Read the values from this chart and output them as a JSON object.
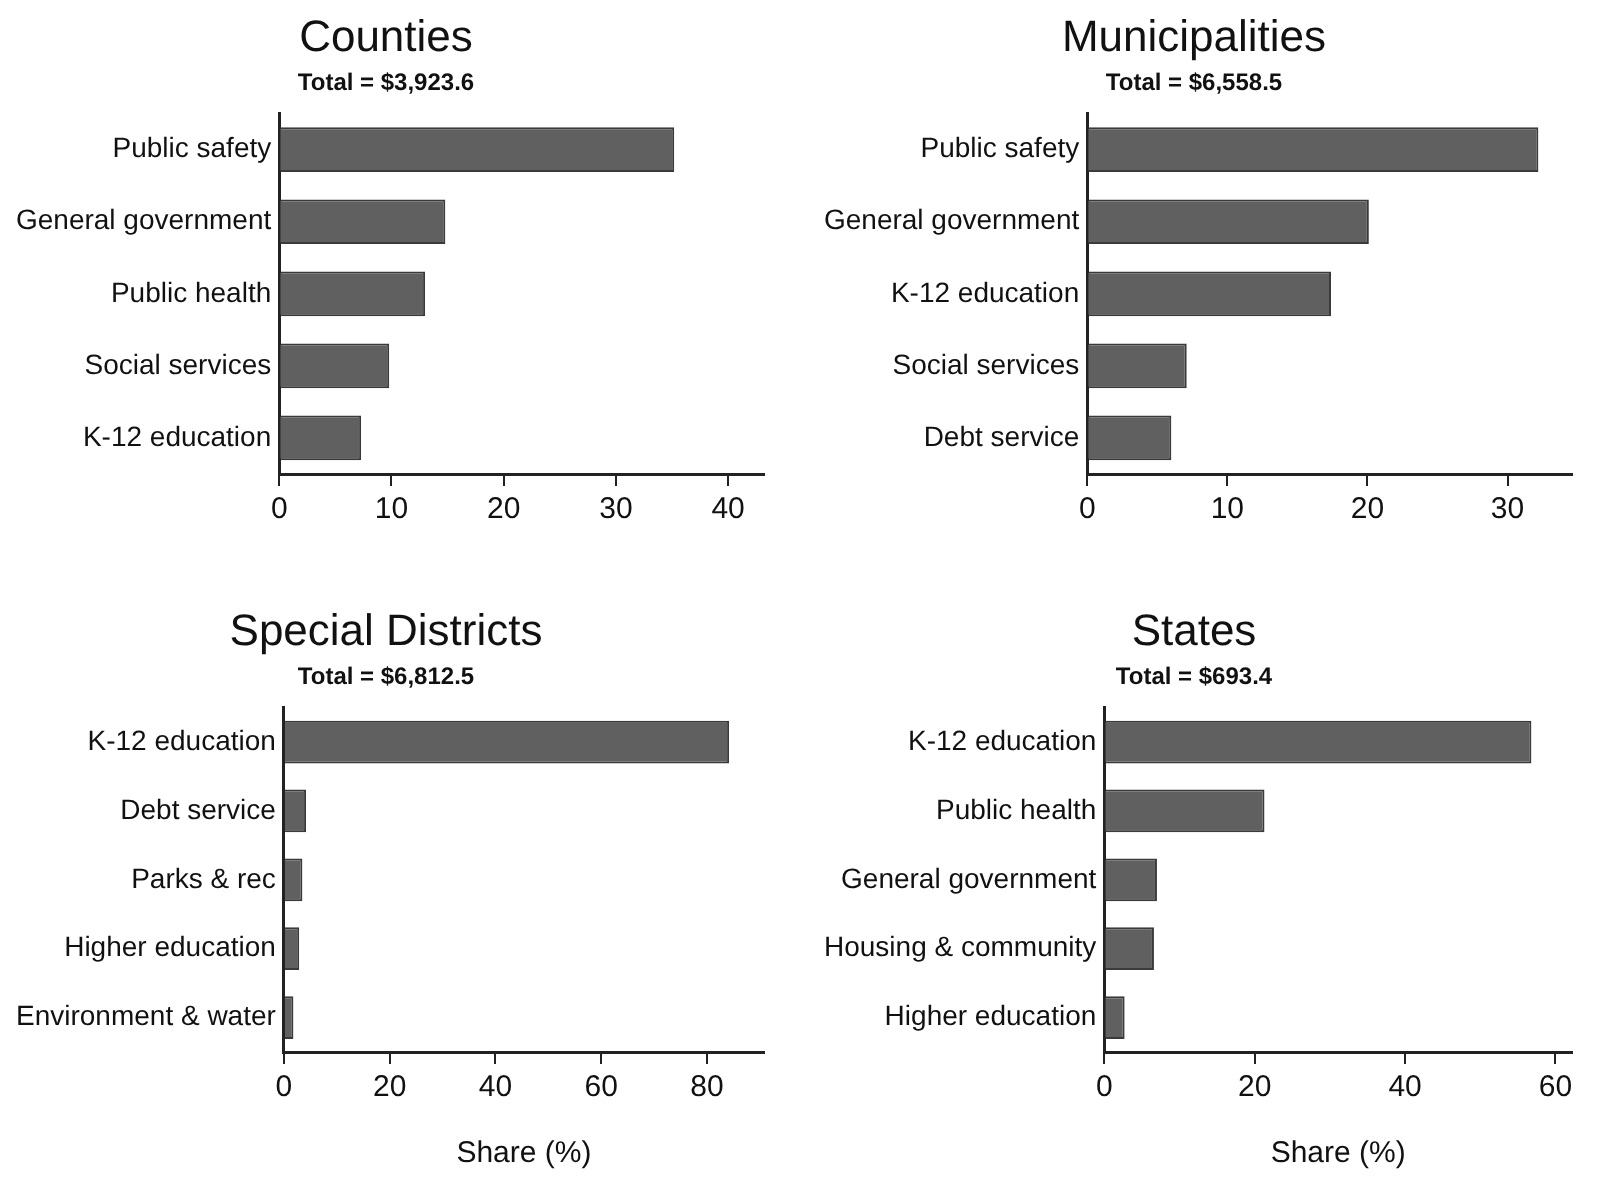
{
  "chart_data": [
    {
      "type": "bar",
      "orientation": "horizontal",
      "title": "Counties",
      "subtitle": "Total = $3,923.6",
      "categories": [
        "Public safety",
        "General government",
        "Public health",
        "Social services",
        "K-12 education"
      ],
      "values": [
        35.2,
        14.8,
        13.0,
        9.8,
        7.3
      ],
      "color": "#606060",
      "xlim": [
        0,
        43.2
      ],
      "xticks": [
        0,
        10,
        20,
        30,
        40
      ],
      "grid": false,
      "legend": false
    },
    {
      "type": "bar",
      "orientation": "horizontal",
      "title": "Municipalities",
      "subtitle": "Total = $6,558.5",
      "categories": [
        "Public safety",
        "General government",
        "K-12 education",
        "Social services",
        "Debt service"
      ],
      "values": [
        32.2,
        20.1,
        17.4,
        7.1,
        6.0
      ],
      "color": "#606060",
      "xlim": [
        0,
        34.6
      ],
      "xticks": [
        0,
        10,
        20,
        30
      ],
      "grid": false,
      "legend": false
    },
    {
      "type": "bar",
      "orientation": "horizontal",
      "title": "Special Districts",
      "subtitle": "Total = $6,812.5",
      "xlabel": "Share (%)",
      "categories": [
        "K-12 education",
        "Debt service",
        "Parks & rec",
        "Higher education",
        "Environment & water"
      ],
      "values": [
        84.2,
        4.2,
        3.5,
        2.9,
        1.8
      ],
      "color": "#606060",
      "xlim": [
        0,
        90.8
      ],
      "xticks": [
        0,
        20,
        40,
        60,
        80
      ],
      "grid": false,
      "legend": false
    },
    {
      "type": "bar",
      "orientation": "horizontal",
      "title": "States",
      "subtitle": "Total = $693.4",
      "xlabel": "Share (%)",
      "categories": [
        "K-12 education",
        "Public health",
        "General government",
        "Housing & community",
        "Higher education"
      ],
      "values": [
        56.8,
        21.3,
        7.0,
        6.6,
        2.7
      ],
      "color": "#606060",
      "xlim": [
        0,
        62.2
      ],
      "xticks": [
        0,
        20,
        40,
        60
      ],
      "grid": false,
      "legend": false
    }
  ]
}
